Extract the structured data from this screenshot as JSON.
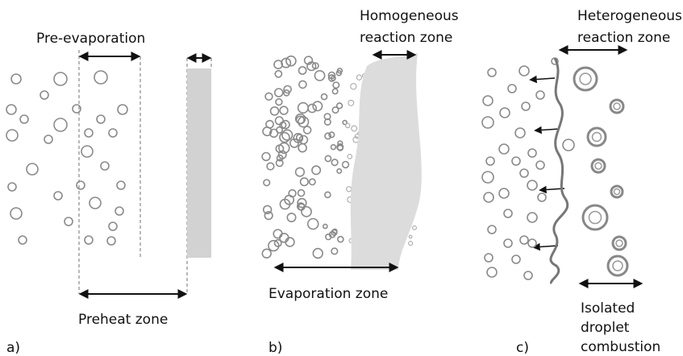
{
  "panels": [
    {
      "tag": "a)",
      "top_label": "Pre-evaporation",
      "bottom_label": "Preheat zone"
    },
    {
      "tag": "b)",
      "top_label_lines": [
        "Homogeneous",
        "reaction zone"
      ],
      "bottom_label": "Evaporation zone"
    },
    {
      "tag": "c)",
      "top_label_lines": [
        "Heterogeneous",
        "reaction zone"
      ],
      "bottom_label_lines": [
        "Isolated",
        "droplet",
        "combustion"
      ]
    }
  ]
}
